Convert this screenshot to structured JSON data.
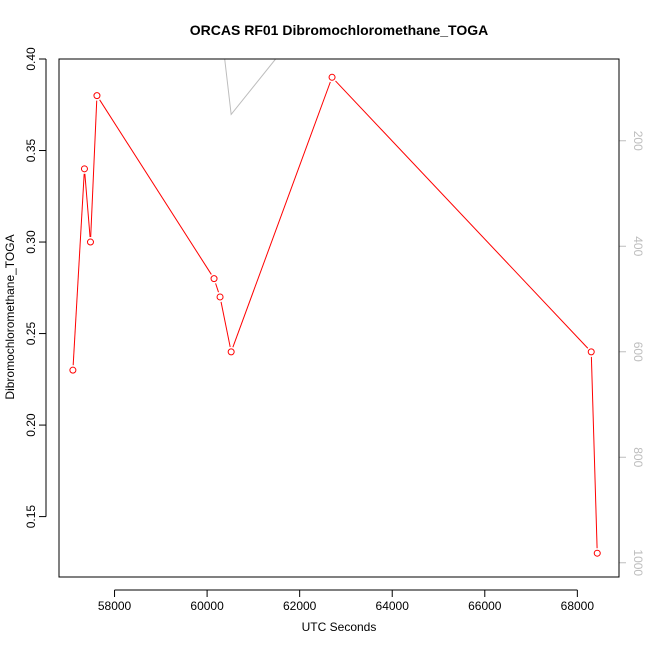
{
  "chart_data": {
    "type": "line",
    "title": "ORCAS RF01 Dibromochloromethane_TOGA",
    "xlabel": "UTC Seconds",
    "ylabel": "Dibromochloromethane_TOGA",
    "xlim": [
      56800,
      68900
    ],
    "ylim": [
      0.117,
      0.4
    ],
    "x_ticks": [
      58000,
      60000,
      62000,
      64000,
      66000,
      68000
    ],
    "y_ticks": [
      0.15,
      0.2,
      0.25,
      0.3,
      0.35,
      0.4
    ],
    "y_tick_labels": [
      "0.15",
      "0.20",
      "0.25",
      "0.30",
      "0.35",
      "0.40"
    ],
    "series": [
      {
        "color": "#ff0000",
        "marker": "open-circle",
        "x": [
          57100,
          57350,
          57480,
          57620,
          60150,
          60280,
          60520,
          62700,
          68300,
          68430
        ],
        "y": [
          0.23,
          0.34,
          0.3,
          0.38,
          0.28,
          0.27,
          0.24,
          0.39,
          0.24,
          0.13
        ]
      }
    ],
    "secondary_axis": {
      "side": "right",
      "color": "#bdbdbd",
      "reversed": true,
      "ylim": [
        45,
        1027
      ],
      "ticks": [
        200,
        400,
        600,
        800,
        1000
      ],
      "series": {
        "color": "#bdbdbd",
        "x": [
          60380,
          60520,
          61480
        ],
        "y": [
          45,
          150,
          45
        ]
      }
    },
    "grid": false,
    "legend": "none"
  }
}
